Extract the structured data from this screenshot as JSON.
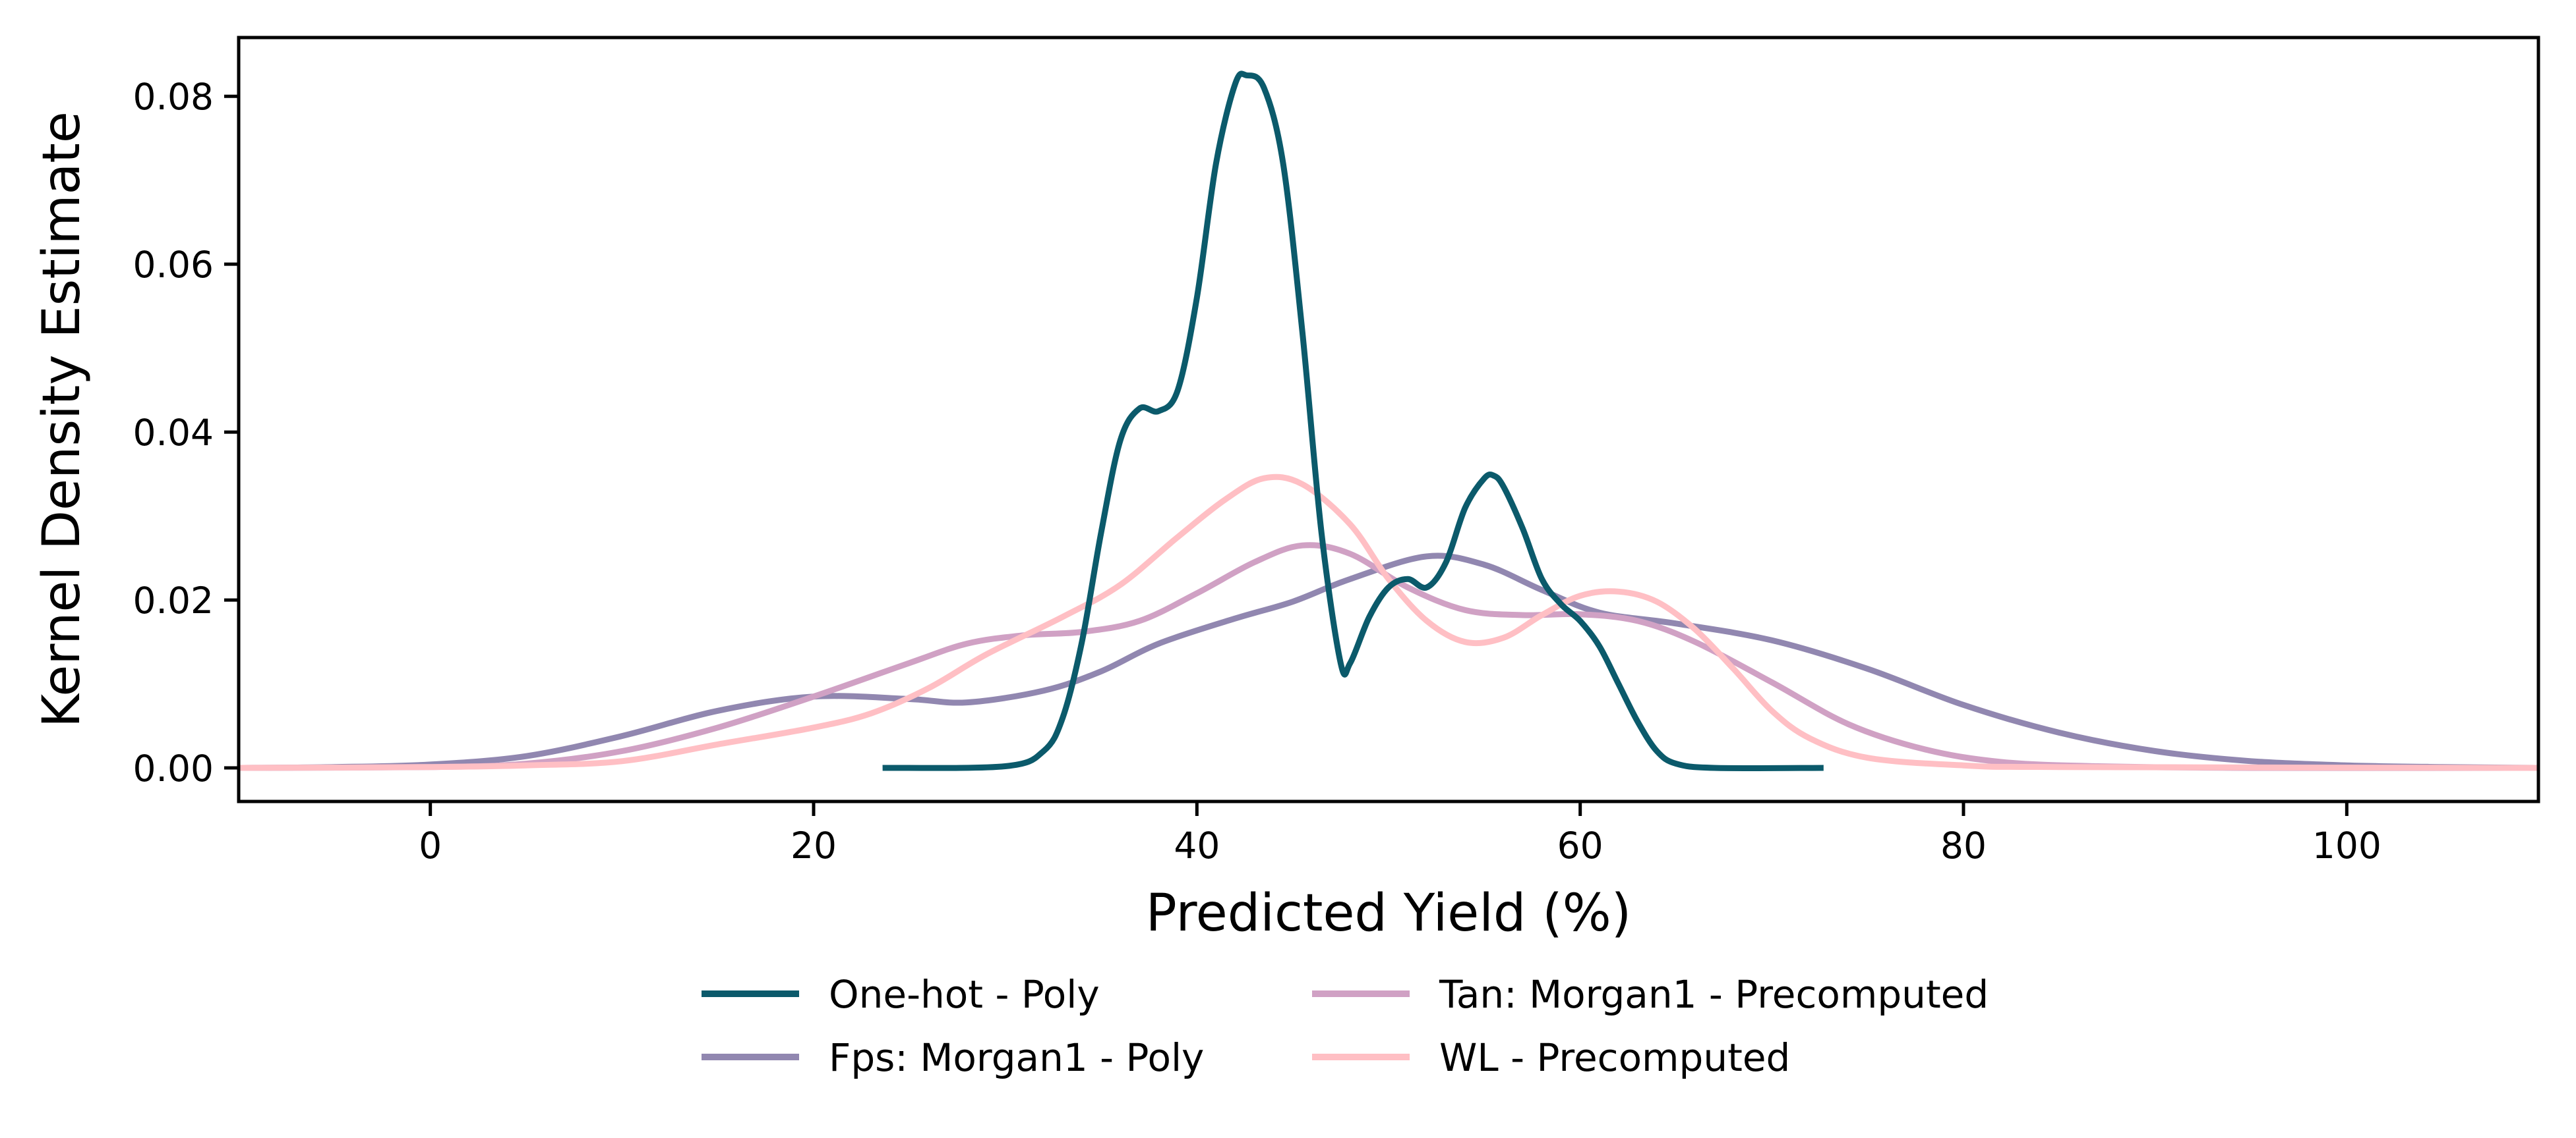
{
  "chart_data": {
    "type": "line",
    "xlabel": "Predicted Yield (%)",
    "ylabel": "Kernel Density Estimate",
    "xlim": [
      -10,
      110
    ],
    "ylim": [
      -0.004,
      0.087
    ],
    "xticks": [
      0,
      20,
      40,
      60,
      80,
      100
    ],
    "yticks": [
      0.0,
      0.02,
      0.04,
      0.06,
      0.08
    ],
    "xtick_labels": [
      "0",
      "20",
      "40",
      "60",
      "80",
      "100"
    ],
    "ytick_labels": [
      "0.00",
      "0.02",
      "0.04",
      "0.06",
      "0.08"
    ],
    "grid": false,
    "legend_position": "bottom-center",
    "series": [
      {
        "name": "One-hot - Poly",
        "color": "#0b5a6b",
        "points": [
          [
            23.6,
            0.0
          ],
          [
            30,
            0.0002
          ],
          [
            32,
            0.002
          ],
          [
            33,
            0.006
          ],
          [
            34,
            0.015
          ],
          [
            35,
            0.028
          ],
          [
            36,
            0.039
          ],
          [
            37,
            0.0428
          ],
          [
            38,
            0.0425
          ],
          [
            39,
            0.045
          ],
          [
            40,
            0.056
          ],
          [
            41,
            0.072
          ],
          [
            42,
            0.0815
          ],
          [
            42.6,
            0.0825
          ],
          [
            43.5,
            0.081
          ],
          [
            44.5,
            0.072
          ],
          [
            45.5,
            0.052
          ],
          [
            46.5,
            0.028
          ],
          [
            47.5,
            0.0125
          ],
          [
            48,
            0.0125
          ],
          [
            49,
            0.018
          ],
          [
            50,
            0.0215
          ],
          [
            51,
            0.0225
          ],
          [
            52,
            0.0215
          ],
          [
            53,
            0.0245
          ],
          [
            54,
            0.031
          ],
          [
            55,
            0.0345
          ],
          [
            55.5,
            0.0348
          ],
          [
            56,
            0.0335
          ],
          [
            57,
            0.0285
          ],
          [
            58,
            0.0225
          ],
          [
            59,
            0.0195
          ],
          [
            60,
            0.0175
          ],
          [
            61,
            0.0145
          ],
          [
            62,
            0.01
          ],
          [
            63,
            0.0055
          ],
          [
            64,
            0.002
          ],
          [
            65,
            0.0005
          ],
          [
            67,
            0.0
          ],
          [
            72.7,
            0.0
          ]
        ]
      },
      {
        "name": "Fps: Morgan1 - Poly",
        "color": "#9187b0",
        "points": [
          [
            -10,
            0.0
          ],
          [
            -5,
            0.0001
          ],
          [
            0,
            0.0004
          ],
          [
            5,
            0.0014
          ],
          [
            10,
            0.0038
          ],
          [
            15,
            0.0068
          ],
          [
            20,
            0.0085
          ],
          [
            25,
            0.0082
          ],
          [
            28,
            0.0078
          ],
          [
            32,
            0.0092
          ],
          [
            35,
            0.0115
          ],
          [
            38,
            0.0148
          ],
          [
            42,
            0.0178
          ],
          [
            45,
            0.0198
          ],
          [
            48,
            0.0225
          ],
          [
            52,
            0.0252
          ],
          [
            55,
            0.0242
          ],
          [
            58,
            0.0212
          ],
          [
            61,
            0.0185
          ],
          [
            65,
            0.0172
          ],
          [
            70,
            0.0152
          ],
          [
            75,
            0.0118
          ],
          [
            80,
            0.0075
          ],
          [
            85,
            0.0042
          ],
          [
            90,
            0.002
          ],
          [
            95,
            0.0008
          ],
          [
            100,
            0.0003
          ],
          [
            105,
            0.0001
          ],
          [
            110,
            0.0
          ]
        ]
      },
      {
        "name": "Tan: Morgan1 - Precomputed",
        "color": "#d0a1c4",
        "points": [
          [
            -10,
            0.0
          ],
          [
            0,
            0.0001
          ],
          [
            5,
            0.0005
          ],
          [
            10,
            0.002
          ],
          [
            15,
            0.0048
          ],
          [
            20,
            0.0085
          ],
          [
            25,
            0.0125
          ],
          [
            28,
            0.0148
          ],
          [
            31,
            0.0158
          ],
          [
            34,
            0.0162
          ],
          [
            37,
            0.0175
          ],
          [
            40,
            0.0208
          ],
          [
            43,
            0.0245
          ],
          [
            45.5,
            0.0265
          ],
          [
            48,
            0.0255
          ],
          [
            51,
            0.0215
          ],
          [
            54,
            0.0188
          ],
          [
            57,
            0.0182
          ],
          [
            60,
            0.0183
          ],
          [
            63,
            0.0175
          ],
          [
            66,
            0.015
          ],
          [
            70,
            0.0102
          ],
          [
            74,
            0.0052
          ],
          [
            78,
            0.0022
          ],
          [
            82,
            0.0007
          ],
          [
            87,
            0.0002
          ],
          [
            95,
            0.0
          ],
          [
            110,
            0.0
          ]
        ]
      },
      {
        "name": "WL - Precomputed",
        "color": "#ffbfc4",
        "points": [
          [
            -10,
            0.0
          ],
          [
            0,
            0.0001
          ],
          [
            5,
            0.0003
          ],
          [
            10,
            0.0008
          ],
          [
            15,
            0.0028
          ],
          [
            20,
            0.0048
          ],
          [
            23,
            0.0065
          ],
          [
            26,
            0.0095
          ],
          [
            29,
            0.0135
          ],
          [
            33,
            0.018
          ],
          [
            36,
            0.0218
          ],
          [
            39,
            0.0275
          ],
          [
            41.5,
            0.032
          ],
          [
            43.5,
            0.0345
          ],
          [
            45.5,
            0.0338
          ],
          [
            48,
            0.029
          ],
          [
            50,
            0.0225
          ],
          [
            52,
            0.0175
          ],
          [
            54,
            0.015
          ],
          [
            56,
            0.0155
          ],
          [
            58,
            0.0182
          ],
          [
            60,
            0.0205
          ],
          [
            62,
            0.021
          ],
          [
            64,
            0.0198
          ],
          [
            66,
            0.0165
          ],
          [
            68,
            0.0118
          ],
          [
            70,
            0.0068
          ],
          [
            72,
            0.0035
          ],
          [
            75,
            0.0012
          ],
          [
            80,
            0.0003
          ],
          [
            85,
            0.0001
          ],
          [
            110,
            0.0
          ]
        ]
      }
    ]
  }
}
